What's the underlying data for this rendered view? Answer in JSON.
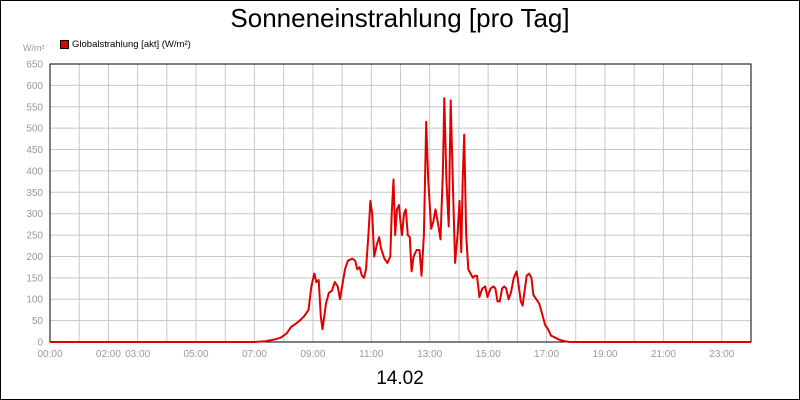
{
  "chart_data": {
    "type": "line",
    "title": "Sonneneinstrahlung [pro Tag]",
    "ylabel": "W/m²",
    "xlabel": "14.02",
    "ylim": [
      0,
      650
    ],
    "xlim": [
      0,
      24
    ],
    "grid": true,
    "legend_position": "top-left",
    "y_ticks": [
      0,
      50,
      100,
      150,
      200,
      250,
      300,
      350,
      400,
      450,
      500,
      550,
      600,
      650
    ],
    "x_ticks": [
      {
        "x": 0,
        "label": "00:00"
      },
      {
        "x": 2,
        "label": "02:00"
      },
      {
        "x": 3,
        "label": "03:00"
      },
      {
        "x": 5,
        "label": "05:00"
      },
      {
        "x": 7,
        "label": "07:00"
      },
      {
        "x": 9,
        "label": "09:00"
      },
      {
        "x": 11,
        "label": "11:00"
      },
      {
        "x": 13,
        "label": "13:00"
      },
      {
        "x": 15,
        "label": "15:00"
      },
      {
        "x": 17,
        "label": "17:00"
      },
      {
        "x": 19,
        "label": "19:00"
      },
      {
        "x": 21,
        "label": "21:00"
      },
      {
        "x": 23,
        "label": "23:00"
      }
    ],
    "series": [
      {
        "name": "Globalstrahlung [akt] (W/m²)",
        "color": "#e00000",
        "points": [
          [
            0,
            0
          ],
          [
            7.0,
            0
          ],
          [
            7.4,
            2
          ],
          [
            7.7,
            6
          ],
          [
            7.9,
            10
          ],
          [
            8.1,
            20
          ],
          [
            8.25,
            35
          ],
          [
            8.4,
            42
          ],
          [
            8.55,
            50
          ],
          [
            8.7,
            60
          ],
          [
            8.85,
            75
          ],
          [
            8.95,
            130
          ],
          [
            9.05,
            160
          ],
          [
            9.12,
            140
          ],
          [
            9.2,
            145
          ],
          [
            9.27,
            60
          ],
          [
            9.33,
            30
          ],
          [
            9.45,
            90
          ],
          [
            9.55,
            115
          ],
          [
            9.65,
            120
          ],
          [
            9.75,
            140
          ],
          [
            9.85,
            130
          ],
          [
            9.93,
            100
          ],
          [
            10.0,
            130
          ],
          [
            10.1,
            170
          ],
          [
            10.2,
            190
          ],
          [
            10.35,
            195
          ],
          [
            10.45,
            190
          ],
          [
            10.52,
            170
          ],
          [
            10.6,
            175
          ],
          [
            10.68,
            155
          ],
          [
            10.75,
            150
          ],
          [
            10.82,
            170
          ],
          [
            10.9,
            250
          ],
          [
            10.97,
            330
          ],
          [
            11.03,
            300
          ],
          [
            11.1,
            200
          ],
          [
            11.2,
            230
          ],
          [
            11.27,
            245
          ],
          [
            11.33,
            220
          ],
          [
            11.45,
            195
          ],
          [
            11.55,
            185
          ],
          [
            11.65,
            200
          ],
          [
            11.7,
            300
          ],
          [
            11.76,
            380
          ],
          [
            11.82,
            250
          ],
          [
            11.88,
            310
          ],
          [
            11.95,
            320
          ],
          [
            12.0,
            280
          ],
          [
            12.05,
            250
          ],
          [
            12.12,
            300
          ],
          [
            12.18,
            310
          ],
          [
            12.25,
            250
          ],
          [
            12.32,
            245
          ],
          [
            12.38,
            165
          ],
          [
            12.45,
            200
          ],
          [
            12.55,
            215
          ],
          [
            12.65,
            215
          ],
          [
            12.72,
            155
          ],
          [
            12.8,
            250
          ],
          [
            12.88,
            515
          ],
          [
            12.95,
            380
          ],
          [
            13.05,
            265
          ],
          [
            13.12,
            280
          ],
          [
            13.2,
            310
          ],
          [
            13.3,
            270
          ],
          [
            13.37,
            240
          ],
          [
            13.45,
            400
          ],
          [
            13.5,
            570
          ],
          [
            13.57,
            380
          ],
          [
            13.65,
            270
          ],
          [
            13.72,
            565
          ],
          [
            13.8,
            350
          ],
          [
            13.87,
            185
          ],
          [
            13.95,
            250
          ],
          [
            14.02,
            330
          ],
          [
            14.08,
            210
          ],
          [
            14.13,
            380
          ],
          [
            14.18,
            485
          ],
          [
            14.25,
            250
          ],
          [
            14.32,
            170
          ],
          [
            14.4,
            160
          ],
          [
            14.48,
            150
          ],
          [
            14.55,
            155
          ],
          [
            14.62,
            155
          ],
          [
            14.7,
            105
          ],
          [
            14.8,
            125
          ],
          [
            14.9,
            130
          ],
          [
            14.98,
            105
          ],
          [
            15.08,
            125
          ],
          [
            15.18,
            130
          ],
          [
            15.25,
            125
          ],
          [
            15.32,
            95
          ],
          [
            15.4,
            95
          ],
          [
            15.48,
            125
          ],
          [
            15.55,
            130
          ],
          [
            15.62,
            125
          ],
          [
            15.7,
            100
          ],
          [
            15.78,
            115
          ],
          [
            15.88,
            150
          ],
          [
            15.98,
            165
          ],
          [
            16.05,
            130
          ],
          [
            16.12,
            95
          ],
          [
            16.18,
            85
          ],
          [
            16.25,
            120
          ],
          [
            16.32,
            155
          ],
          [
            16.4,
            160
          ],
          [
            16.48,
            150
          ],
          [
            16.55,
            110
          ],
          [
            16.65,
            100
          ],
          [
            16.75,
            90
          ],
          [
            16.85,
            65
          ],
          [
            16.95,
            40
          ],
          [
            17.05,
            30
          ],
          [
            17.15,
            15
          ],
          [
            17.3,
            10
          ],
          [
            17.45,
            5
          ],
          [
            17.6,
            2
          ],
          [
            17.8,
            0
          ],
          [
            24,
            0
          ]
        ]
      }
    ]
  }
}
